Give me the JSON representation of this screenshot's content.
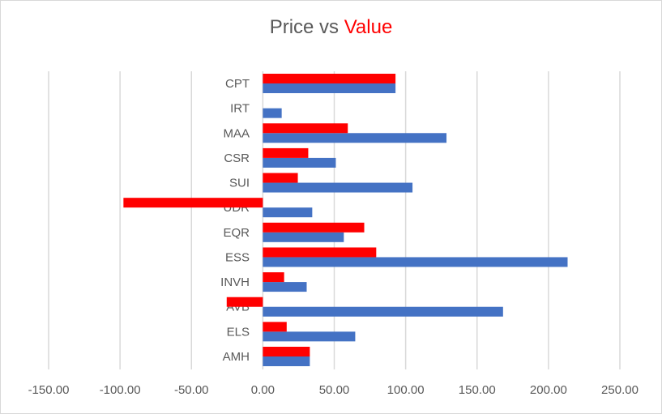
{
  "chart_data": {
    "type": "bar",
    "orientation": "horizontal",
    "title": "Price vs Value",
    "title_parts": [
      "Price vs ",
      "Value"
    ],
    "categories": [
      "AMH",
      "ELS",
      "AVB",
      "INVH",
      "ESS",
      "EQR",
      "UDR",
      "SUI",
      "CSR",
      "MAA",
      "IRT",
      "CPT"
    ],
    "series": [
      {
        "name": "Price",
        "color": "#4472c4",
        "values": [
          32.9,
          64.7,
          168.2,
          30.7,
          213.4,
          56.7,
          34.6,
          104.8,
          51.1,
          128.6,
          13.2,
          92.9
        ]
      },
      {
        "name": "Value",
        "color": "#ff0000",
        "values": [
          32.9,
          16.7,
          -25.3,
          14.9,
          79.4,
          71.0,
          -97.6,
          24.5,
          31.8,
          59.5,
          null,
          92.9
        ]
      }
    ],
    "xlim": [
      -150,
      250
    ],
    "xticks": [
      -150,
      -100,
      -50,
      0,
      50,
      100,
      150,
      200,
      250
    ],
    "xtick_labels": [
      "-150.00",
      "-100.00",
      "-50.00",
      "0.00",
      "50.00",
      "100.00",
      "150.00",
      "200.00",
      "250.00"
    ],
    "xlabel": "",
    "ylabel": "",
    "grid": true,
    "legend": "none"
  }
}
